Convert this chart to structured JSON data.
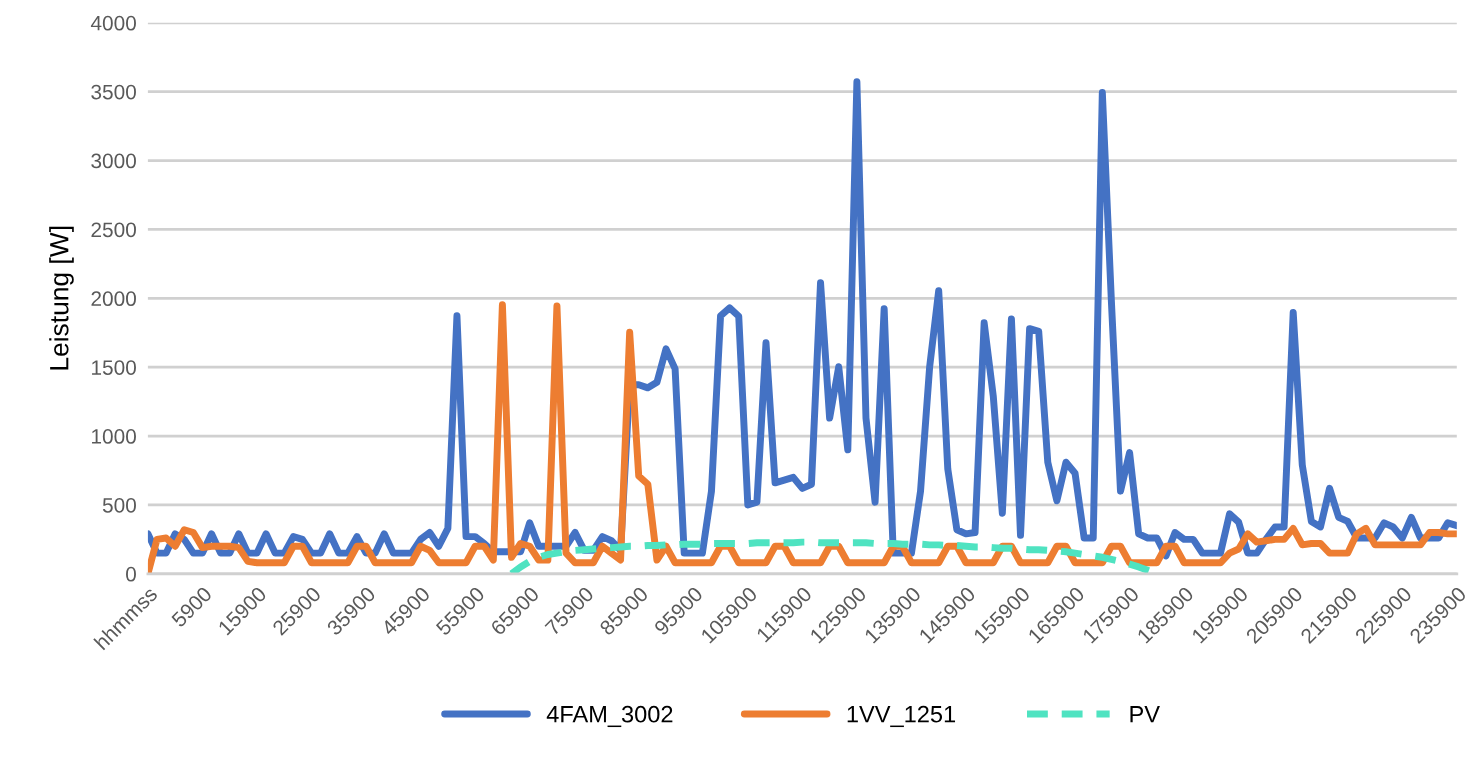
{
  "chart_data": {
    "type": "line",
    "ylabel": "Leistung [W]",
    "categories": [
      "hhmmss",
      null,
      null,
      null,
      null,
      null,
      "5900",
      null,
      null,
      null,
      null,
      null,
      "15900",
      null,
      null,
      null,
      null,
      null,
      "25900",
      null,
      null,
      null,
      null,
      null,
      "35900",
      null,
      null,
      null,
      null,
      null,
      "45900",
      null,
      null,
      null,
      null,
      null,
      "55900",
      null,
      null,
      null,
      null,
      null,
      "65900",
      null,
      null,
      null,
      null,
      null,
      "75900",
      null,
      null,
      null,
      null,
      null,
      "85900",
      null,
      null,
      null,
      null,
      null,
      "95900",
      null,
      null,
      null,
      null,
      null,
      "105900",
      null,
      null,
      null,
      null,
      null,
      "115900",
      null,
      null,
      null,
      null,
      null,
      "125900",
      null,
      null,
      null,
      null,
      null,
      "135900",
      null,
      null,
      null,
      null,
      null,
      "145900",
      null,
      null,
      null,
      null,
      null,
      "155900",
      null,
      null,
      null,
      null,
      null,
      "165900",
      null,
      null,
      null,
      null,
      null,
      "175900",
      null,
      null,
      null,
      null,
      null,
      "185900",
      null,
      null,
      null,
      null,
      null,
      "195900",
      null,
      null,
      null,
      null,
      null,
      "205900",
      null,
      null,
      null,
      null,
      null,
      "215900",
      null,
      null,
      null,
      null,
      null,
      "225900",
      null,
      null,
      null,
      null,
      null,
      "235900"
    ],
    "ylim": [
      0,
      4000
    ],
    "yticks": [
      0,
      500,
      1000,
      1500,
      2000,
      2500,
      3000,
      3500,
      4000
    ],
    "grid": "y",
    "legend": "bottom",
    "marker": "none",
    "series": [
      {
        "name": "4FAM_3002",
        "color": "#4472c4",
        "line_style": "solid",
        "values": [
          290,
          150,
          150,
          290,
          250,
          150,
          150,
          290,
          150,
          150,
          290,
          150,
          150,
          290,
          150,
          150,
          270,
          250,
          150,
          150,
          290,
          150,
          150,
          270,
          150,
          150,
          290,
          150,
          150,
          150,
          250,
          300,
          200,
          330,
          1873,
          270,
          270,
          220,
          160,
          160,
          160,
          160,
          370,
          200,
          200,
          200,
          200,
          300,
          170,
          170,
          270,
          240,
          170,
          1372,
          1372,
          1350,
          1390,
          1633,
          1488,
          150,
          150,
          150,
          600,
          1873,
          1930,
          1870,
          500,
          520,
          1677,
          660,
          680,
          700,
          620,
          650,
          2113,
          1130,
          1503,
          900,
          3572,
          1130,
          520,
          1924,
          150,
          150,
          150,
          600,
          1500,
          2055,
          760,
          320,
          290,
          300,
          1822,
          1292,
          440,
          1850,
          280,
          1780,
          1760,
          810,
          530,
          810,
          730,
          260,
          260,
          3495,
          1975,
          600,
          880,
          290,
          260,
          260,
          130,
          300,
          250,
          250,
          150,
          150,
          150,
          435,
          375,
          150,
          150,
          250,
          340,
          340,
          1898,
          790,
          380,
          340,
          620,
          410,
          380,
          260,
          260,
          260,
          370,
          340,
          260,
          410,
          260,
          260,
          260,
          370,
          350
        ]
      },
      {
        "name": "1VV_1251",
        "color": "#ed7d31",
        "line_style": "solid",
        "values": [
          0,
          250,
          260,
          200,
          320,
          300,
          190,
          200,
          200,
          200,
          190,
          90,
          80,
          80,
          80,
          80,
          200,
          200,
          80,
          80,
          80,
          80,
          80,
          200,
          200,
          80,
          80,
          80,
          80,
          80,
          200,
          170,
          80,
          80,
          80,
          80,
          200,
          200,
          100,
          1953,
          120,
          220,
          200,
          100,
          100,
          1945,
          150,
          80,
          80,
          80,
          200,
          150,
          100,
          1753,
          710,
          650,
          100,
          200,
          80,
          80,
          80,
          80,
          80,
          200,
          200,
          80,
          80,
          80,
          80,
          200,
          200,
          80,
          80,
          80,
          80,
          200,
          200,
          80,
          80,
          80,
          80,
          80,
          200,
          200,
          80,
          80,
          80,
          80,
          200,
          200,
          80,
          80,
          80,
          80,
          200,
          200,
          80,
          80,
          80,
          80,
          200,
          200,
          80,
          80,
          80,
          80,
          200,
          200,
          80,
          80,
          80,
          80,
          200,
          200,
          80,
          80,
          80,
          80,
          80,
          150,
          180,
          290,
          230,
          240,
          250,
          250,
          330,
          210,
          220,
          220,
          150,
          150,
          150,
          290,
          330,
          210,
          210,
          210,
          210,
          210,
          210,
          300,
          300,
          290,
          290
        ]
      },
      {
        "name": "PV",
        "color": "#4fe3c1",
        "line_style": "dashed",
        "values": [
          null,
          null,
          null,
          null,
          null,
          null,
          null,
          null,
          null,
          null,
          null,
          null,
          null,
          null,
          null,
          null,
          null,
          null,
          null,
          null,
          null,
          null,
          null,
          null,
          null,
          null,
          null,
          null,
          null,
          null,
          null,
          null,
          null,
          null,
          null,
          null,
          null,
          null,
          null,
          null,
          0,
          50,
          90,
          120,
          140,
          150,
          160,
          170,
          175,
          180,
          185,
          190,
          195,
          200,
          200,
          205,
          205,
          210,
          210,
          215,
          215,
          215,
          220,
          220,
          220,
          220,
          220,
          225,
          225,
          225,
          225,
          225,
          230,
          230,
          225,
          225,
          225,
          225,
          225,
          225,
          220,
          220,
          220,
          215,
          215,
          215,
          210,
          210,
          205,
          205,
          200,
          195,
          195,
          190,
          185,
          185,
          180,
          175,
          175,
          170,
          165,
          160,
          150,
          140,
          130,
          120,
          105,
          90,
          70,
          50,
          25,
          0,
          null,
          null,
          null,
          null,
          null,
          null,
          null,
          null,
          null,
          null,
          null,
          null,
          null,
          null,
          null,
          null,
          null,
          null,
          null,
          null,
          null,
          null,
          null,
          null,
          null,
          null,
          null,
          null,
          null,
          null,
          null,
          null,
          null
        ]
      }
    ]
  }
}
